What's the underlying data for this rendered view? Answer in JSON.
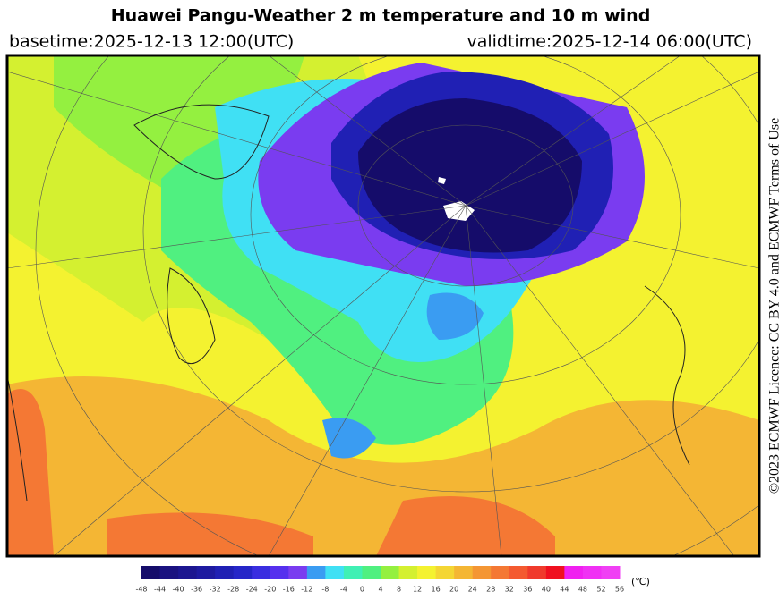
{
  "header": {
    "title": "Huawei Pangu-Weather  2 m temperature and 10 m wind",
    "basetime": "basetime:2025-12-13 12:00(UTC)",
    "validtime": "validtime:2025-12-14 06:00(UTC)"
  },
  "licence": "©2023 ECMWF Licence: CC BY 4.0 and ECMWF  Terms of Use",
  "colorbar": {
    "unit": "(℃)",
    "ticks": [
      -48,
      -44,
      -40,
      -36,
      -32,
      -28,
      -24,
      -20,
      -16,
      -12,
      -8,
      -4,
      0,
      4,
      8,
      12,
      16,
      20,
      24,
      28,
      32,
      36,
      40,
      44,
      48,
      52,
      56
    ],
    "colors": [
      "#150c6a",
      "#1a1280",
      "#1c1690",
      "#1e1aa0",
      "#2020b4",
      "#2626c8",
      "#3a2ee0",
      "#5630ee",
      "#7a3cf0",
      "#3a9cf2",
      "#40e0f4",
      "#40f0b4",
      "#50f080",
      "#94f040",
      "#d4f030",
      "#f4f230",
      "#f4d634",
      "#f4b634",
      "#f49634",
      "#f47834",
      "#f45a30",
      "#f03a2c",
      "#f01020",
      "#f020f0",
      "#f030f4",
      "#f040f4"
    ]
  }
}
